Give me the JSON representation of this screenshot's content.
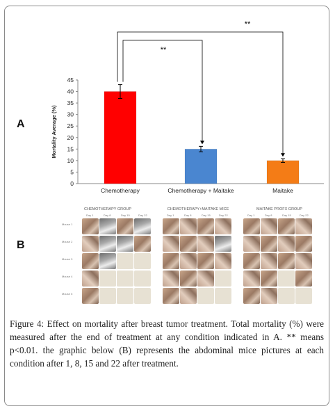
{
  "panels": {
    "a": "A",
    "b": "B"
  },
  "chart_data": {
    "type": "bar",
    "categories": [
      "Chemotherapy",
      "Chemotherapy + Maitake",
      "Maitake"
    ],
    "values": [
      40,
      15,
      10
    ],
    "errors": [
      3,
      1.2,
      0.8
    ],
    "colors": [
      "#ff0000",
      "#4a86d0",
      "#f47c16"
    ],
    "ylabel": "Mortality Average (%)",
    "xlabel": "",
    "ylim": [
      0,
      45
    ],
    "yticks": [
      "0",
      "5",
      "10",
      "15",
      "20",
      "25",
      "30",
      "35",
      "40",
      "45"
    ],
    "grid": false,
    "significance": [
      {
        "from": "Chemotherapy",
        "to": "Chemotherapy + Maitake",
        "label": "**"
      },
      {
        "from": "Chemotherapy",
        "to": "Maitake",
        "label": "**"
      }
    ]
  },
  "photo_panel": {
    "groups": [
      {
        "title": "CHEMOTHERAPY GROUP",
        "days": [
          "Day 1",
          "Day 8",
          "Day 15",
          "Day 22"
        ],
        "mice": [
          "Mouse 1",
          "Mouse 2",
          "Mouse 3",
          "Mouse 4",
          "Mouse 5"
        ]
      },
      {
        "title": "CHEMOTHERAPY+MAITAKE MICE",
        "days": [
          "Day 1",
          "Day 8",
          "Day 15",
          "Day 22"
        ]
      },
      {
        "title": "MAITAKE PROFX GROUP",
        "days": [
          "Day 1",
          "Day 8",
          "Day 15",
          "Day 22"
        ]
      }
    ]
  },
  "caption": {
    "label": "Figure 4:",
    "text": "Effect on mortality after breast tumor treatment. Total mortality (%) were measured after the end of treatment at any condition indicated in A. ** means p<0.01. the graphic below (B) represents the abdominal mice pictures at each condition after 1, 8, 15 and 22 after treatment."
  }
}
